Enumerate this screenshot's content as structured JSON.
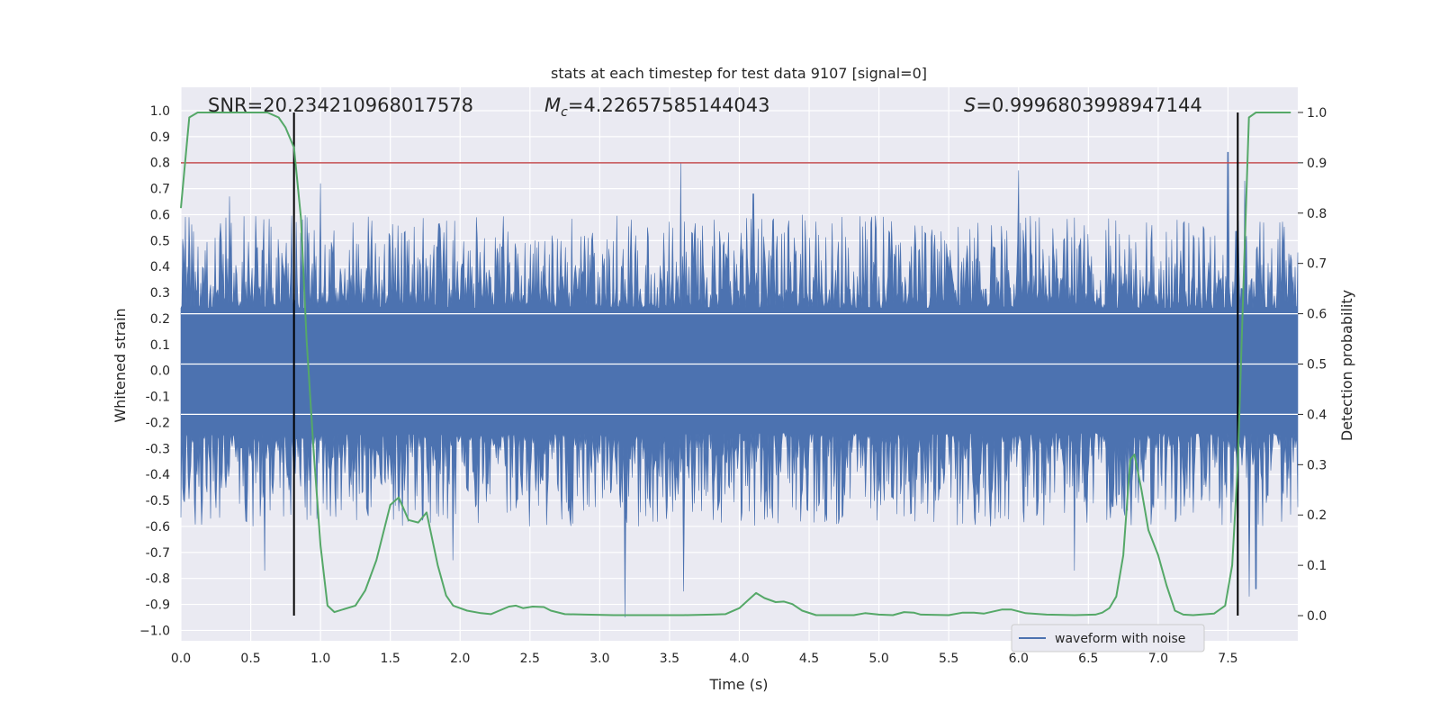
{
  "chart_data": {
    "type": "line",
    "title": "stats at each timestep for test data 9107 [signal=0]",
    "xlabel": "Time (s)",
    "ylabel": "Whitened strain",
    "y2label": "Detection probability",
    "xlim": [
      0.0,
      8.0
    ],
    "ylim": [
      -1.04,
      1.09
    ],
    "y2lim": [
      -0.05,
      1.05
    ],
    "x_ticks": [
      "0.0",
      "0.5",
      "1.0",
      "1.5",
      "2.0",
      "2.5",
      "3.0",
      "3.5",
      "4.0",
      "4.5",
      "5.0",
      "5.5",
      "6.0",
      "6.5",
      "7.0",
      "7.5"
    ],
    "y_ticks": [
      "1.0",
      "0.9",
      "0.8",
      "0.7",
      "0.6",
      "0.5",
      "0.4",
      "0.3",
      "0.2",
      "0.1",
      "0.0",
      "-0.1",
      "-0.2",
      "-0.3",
      "-0.4",
      "-0.5",
      "-0.6",
      "-0.7",
      "-0.8",
      "-0.9",
      "−1.0"
    ],
    "y2_ticks": [
      "1.0",
      "0.9",
      "0.8",
      "0.7",
      "0.6",
      "0.5",
      "0.4",
      "0.3",
      "0.2",
      "0.1",
      "0.0"
    ],
    "annotations": {
      "snr": "SNR=20.234210968017578",
      "mc_symbol": "M",
      "mc_sub": "c",
      "mc_value": "=4.22657585144043",
      "s_symbol": "S",
      "s_value": "=0.9996803998947144"
    },
    "threshold": {
      "value": 0.9,
      "axis": "y2",
      "color": "#c44e52"
    },
    "vertical_markers": [
      0.81,
      7.57
    ],
    "series": [
      {
        "name": "waveform with noise",
        "axis": "y",
        "color": "#4c72b0",
        "style": "dense noise",
        "core_envelope": [
          -0.2,
          0.2
        ],
        "typical_max": 0.6,
        "typical_min": -0.6,
        "peaks": [
          [
            3.58,
            0.8
          ],
          [
            7.5,
            0.84
          ],
          [
            0.35,
            0.67
          ],
          [
            1.0,
            0.72
          ],
          [
            4.1,
            0.68
          ],
          [
            6.0,
            0.77
          ],
          [
            7.62,
            0.73
          ]
        ],
        "troughs": [
          [
            3.18,
            -0.95
          ],
          [
            0.6,
            -0.77
          ],
          [
            3.6,
            -0.85
          ],
          [
            6.4,
            -0.77
          ],
          [
            7.65,
            -0.87
          ],
          [
            7.7,
            -0.84
          ],
          [
            1.95,
            -0.73
          ]
        ]
      },
      {
        "name": "detection probability",
        "axis": "y2",
        "color": "#55a868",
        "x": [
          0.0,
          0.06,
          0.12,
          0.3,
          0.5,
          0.62,
          0.7,
          0.75,
          0.81,
          0.86,
          0.9,
          0.95,
          1.0,
          1.05,
          1.1,
          1.25,
          1.32,
          1.4,
          1.5,
          1.56,
          1.63,
          1.7,
          1.76,
          1.84,
          1.9,
          1.95,
          2.05,
          2.15,
          2.22,
          2.35,
          2.4,
          2.45,
          2.52,
          2.6,
          2.65,
          2.75,
          2.9,
          3.1,
          3.4,
          3.6,
          3.8,
          3.9,
          4.0,
          4.06,
          4.12,
          4.18,
          4.26,
          4.32,
          4.38,
          4.45,
          4.55,
          4.7,
          4.82,
          4.9,
          5.0,
          5.1,
          5.18,
          5.25,
          5.3,
          5.5,
          5.6,
          5.68,
          5.75,
          5.88,
          5.95,
          6.05,
          6.2,
          6.4,
          6.55,
          6.6,
          6.65,
          6.7,
          6.75,
          6.8,
          6.83,
          6.88,
          6.93,
          7.0,
          7.06,
          7.12,
          7.18,
          7.25,
          7.4,
          7.48,
          7.53,
          7.57,
          7.61,
          7.65,
          7.7,
          7.8,
          7.95
        ],
        "values": [
          0.81,
          0.99,
          1.0,
          1.0,
          1.0,
          1.0,
          0.99,
          0.97,
          0.93,
          0.79,
          0.55,
          0.33,
          0.14,
          0.02,
          0.007,
          0.02,
          0.05,
          0.11,
          0.22,
          0.235,
          0.19,
          0.185,
          0.205,
          0.1,
          0.04,
          0.02,
          0.01,
          0.005,
          0.003,
          0.018,
          0.02,
          0.015,
          0.018,
          0.017,
          0.01,
          0.003,
          0.002,
          0.001,
          0.001,
          0.001,
          0.002,
          0.003,
          0.015,
          0.03,
          0.045,
          0.035,
          0.027,
          0.028,
          0.023,
          0.01,
          0.001,
          0.001,
          0.001,
          0.005,
          0.002,
          0.001,
          0.007,
          0.006,
          0.002,
          0.001,
          0.006,
          0.006,
          0.004,
          0.012,
          0.012,
          0.005,
          0.002,
          0.001,
          0.002,
          0.006,
          0.015,
          0.038,
          0.12,
          0.31,
          0.32,
          0.25,
          0.17,
          0.12,
          0.06,
          0.01,
          0.002,
          0.001,
          0.004,
          0.02,
          0.1,
          0.3,
          0.65,
          0.99,
          1.0,
          1.0,
          1.0
        ]
      }
    ],
    "legend": {
      "placement": "bottom-right",
      "entries": [
        "waveform with noise"
      ]
    }
  }
}
